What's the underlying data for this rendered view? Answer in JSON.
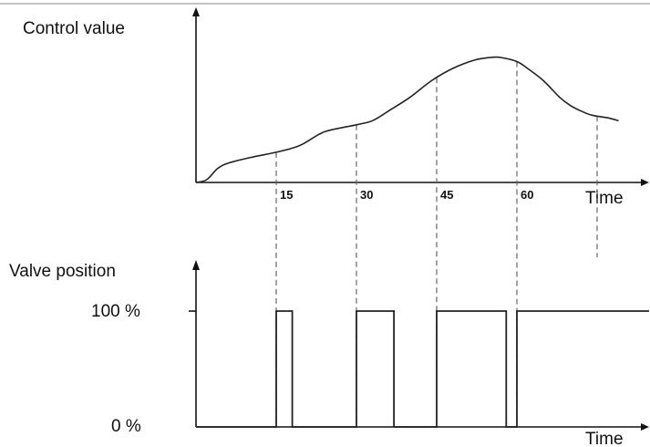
{
  "chart_data": [
    {
      "type": "line",
      "ylabel": "Control value",
      "xlabel": "Time",
      "x_ticks": [
        15,
        30,
        45,
        60
      ],
      "x_range": [
        0,
        80
      ],
      "y_range": [
        0,
        1
      ],
      "x": [
        0,
        2,
        4,
        6,
        10,
        15,
        18,
        20,
        23,
        25,
        30,
        33,
        36,
        40,
        44,
        48,
        52,
        55,
        57,
        60,
        62,
        65,
        68,
        70,
        72,
        74,
        77,
        79
      ],
      "values": [
        0.0,
        0.02,
        0.1,
        0.14,
        0.18,
        0.22,
        0.25,
        0.28,
        0.35,
        0.38,
        0.42,
        0.45,
        0.52,
        0.62,
        0.74,
        0.83,
        0.89,
        0.91,
        0.91,
        0.88,
        0.83,
        0.74,
        0.62,
        0.56,
        0.52,
        0.49,
        0.47,
        0.45
      ],
      "sample_times": [
        15,
        30,
        45,
        60,
        75
      ]
    },
    {
      "type": "line",
      "ylabel": "Valve position",
      "xlabel": "Time",
      "y_ticks": [
        "100 %",
        "0 %"
      ],
      "pulses": [
        {
          "start": 15,
          "end": 18
        },
        {
          "start": 30,
          "end": 37
        },
        {
          "start": 45,
          "end": 58
        },
        {
          "start": 60,
          "end": 85
        }
      ]
    }
  ]
}
